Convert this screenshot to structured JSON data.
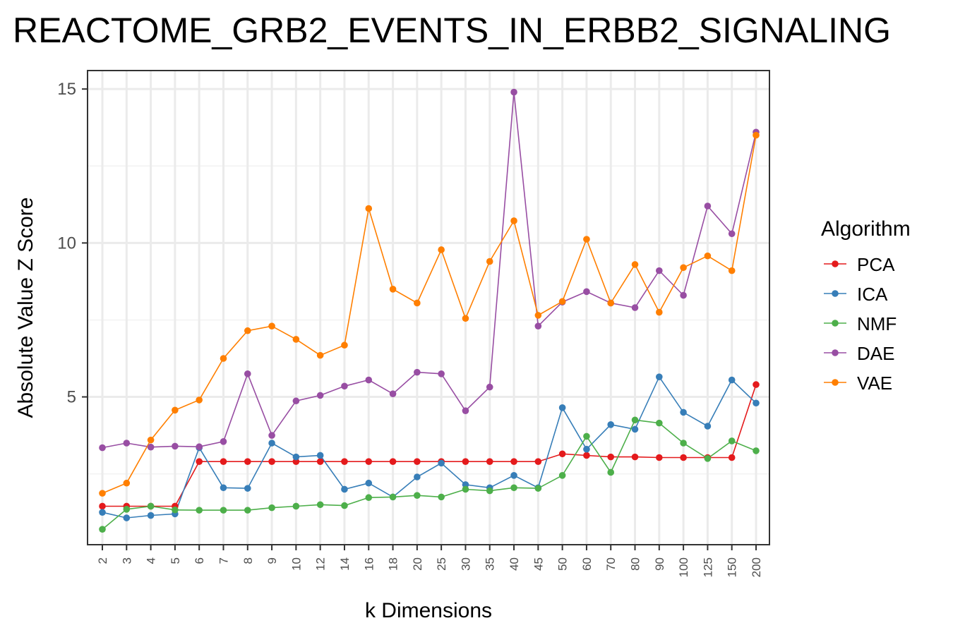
{
  "chart_data": {
    "type": "line",
    "title": "REACTOME_GRB2_EVENTS_IN_ERBB2_SIGNALING",
    "xlabel": "k Dimensions",
    "ylabel": "Absolute Value Z Score",
    "categories": [
      "2",
      "3",
      "4",
      "5",
      "6",
      "7",
      "8",
      "9",
      "10",
      "12",
      "14",
      "16",
      "18",
      "20",
      "25",
      "30",
      "35",
      "40",
      "45",
      "50",
      "60",
      "70",
      "80",
      "90",
      "100",
      "125",
      "150",
      "200"
    ],
    "ylim": [
      0.2,
      15.6
    ],
    "yticks": [
      5,
      10,
      15
    ],
    "grid": true,
    "legend_title": "Algorithm",
    "legend_position": "right",
    "series": [
      {
        "name": "PCA",
        "color": "#E41A1C",
        "values": [
          1.45,
          1.45,
          1.45,
          1.45,
          2.9,
          2.9,
          2.9,
          2.9,
          2.9,
          2.9,
          2.9,
          2.9,
          2.9,
          2.9,
          2.9,
          2.9,
          2.9,
          2.9,
          2.9,
          3.15,
          3.1,
          3.05,
          3.05,
          3.03,
          3.03,
          3.03,
          3.03,
          5.4
        ]
      },
      {
        "name": "ICA",
        "color": "#377EB8",
        "values": [
          1.25,
          1.07,
          1.15,
          1.2,
          3.35,
          2.05,
          2.03,
          3.5,
          3.05,
          3.1,
          2.0,
          2.2,
          1.75,
          2.4,
          2.85,
          2.15,
          2.05,
          2.45,
          2.05,
          4.65,
          3.3,
          4.1,
          3.95,
          5.65,
          4.5,
          4.05,
          5.55,
          4.8
        ]
      },
      {
        "name": "NMF",
        "color": "#4DAF4A",
        "values": [
          0.7,
          1.35,
          1.45,
          1.33,
          1.32,
          1.32,
          1.32,
          1.4,
          1.45,
          1.5,
          1.47,
          1.73,
          1.75,
          1.8,
          1.75,
          2.0,
          1.95,
          2.05,
          2.03,
          2.45,
          3.72,
          2.55,
          4.25,
          4.15,
          3.5,
          3.0,
          3.57,
          3.25
        ]
      },
      {
        "name": "DAE",
        "color": "#984EA3",
        "values": [
          3.35,
          3.5,
          3.37,
          3.4,
          3.38,
          3.55,
          5.75,
          3.75,
          4.87,
          5.05,
          5.35,
          5.55,
          5.1,
          5.8,
          5.75,
          4.55,
          5.32,
          14.9,
          7.3,
          8.08,
          8.42,
          8.05,
          7.9,
          9.1,
          8.3,
          11.2,
          10.3,
          13.6
        ]
      },
      {
        "name": "VAE",
        "color": "#FF7F00",
        "values": [
          1.87,
          2.2,
          3.6,
          4.57,
          4.9,
          6.25,
          7.15,
          7.3,
          6.87,
          6.35,
          6.68,
          11.12,
          8.5,
          8.05,
          9.78,
          7.55,
          9.4,
          10.72,
          7.65,
          8.1,
          10.12,
          8.05,
          9.3,
          7.75,
          9.2,
          9.58,
          9.1,
          13.5
        ]
      }
    ]
  }
}
